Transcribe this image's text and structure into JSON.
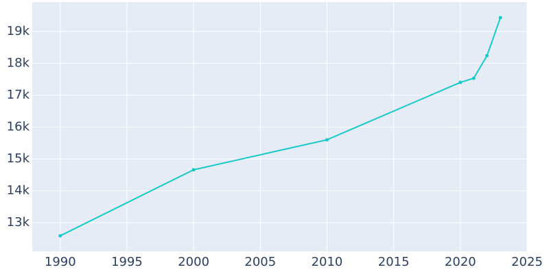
{
  "chart_data": {
    "type": "line",
    "x": [
      1990,
      2000,
      2010,
      2020,
      2021,
      2022,
      2023
    ],
    "series": [
      {
        "color": "#17c9c9",
        "values": [
          12590,
          14660,
          15600,
          17400,
          17530,
          18240,
          19430
        ]
      }
    ],
    "xlim": [
      1987.9,
      2025
    ],
    "xticks": [
      1990,
      1995,
      2000,
      2005,
      2010,
      2015,
      2020,
      2025
    ],
    "ylim": [
      12100,
      19920
    ],
    "yticks": [
      {
        "value": 13000,
        "label": "13k"
      },
      {
        "value": 14000,
        "label": "14k"
      },
      {
        "value": 15000,
        "label": "15k"
      },
      {
        "value": 16000,
        "label": "16k"
      },
      {
        "value": 17000,
        "label": "17k"
      },
      {
        "value": 18000,
        "label": "18k"
      },
      {
        "value": 19000,
        "label": "19k"
      }
    ],
    "grid": true
  }
}
